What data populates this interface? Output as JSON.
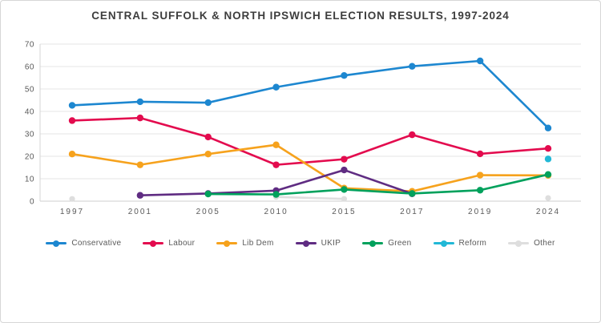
{
  "chart_data": {
    "type": "line",
    "title": "CENTRAL SUFFOLK & NORTH IPSWICH ELECTION RESULTS, 1997-2024",
    "xlabel": "",
    "ylabel": "",
    "categories": [
      "1997",
      "2001",
      "2005",
      "2010",
      "2015",
      "2017",
      "2019",
      "2024"
    ],
    "ylim": [
      0,
      70
    ],
    "yticks": [
      0,
      10,
      20,
      30,
      40,
      50,
      60,
      70
    ],
    "grid": true,
    "legend_position": "bottom",
    "series": [
      {
        "name": "Conservative",
        "color": "#1d87d0",
        "values": [
          42.7,
          44.3,
          43.9,
          50.8,
          56.0,
          60.1,
          62.5,
          32.6
        ]
      },
      {
        "name": "Labour",
        "color": "#e30b4e",
        "values": [
          35.9,
          37.1,
          28.6,
          16.2,
          18.7,
          29.6,
          21.1,
          23.5
        ]
      },
      {
        "name": "Lib Dem",
        "color": "#f6a21d",
        "values": [
          21.0,
          16.2,
          21.0,
          25.1,
          5.8,
          4.4,
          11.6,
          11.5
        ]
      },
      {
        "name": "UKIP",
        "color": "#5f2c82",
        "values": [
          null,
          2.6,
          3.4,
          4.7,
          13.9,
          3.3,
          null,
          null
        ]
      },
      {
        "name": "Green",
        "color": "#00a15c",
        "values": [
          null,
          null,
          3.2,
          3.0,
          5.2,
          3.4,
          4.9,
          11.9
        ]
      },
      {
        "name": "Reform",
        "color": "#22b8d6",
        "values": [
          null,
          null,
          null,
          null,
          null,
          null,
          null,
          18.8
        ]
      },
      {
        "name": "Other",
        "color": "#dedede",
        "values": [
          1.0,
          null,
          null,
          1.9,
          1.0,
          null,
          null,
          1.4
        ]
      }
    ],
    "axis_colors": {
      "gridline": "#e4e4e4",
      "baseline": "#cfcfcf",
      "axis_line": "#d5d5d5",
      "tick_label": "#595959"
    }
  }
}
